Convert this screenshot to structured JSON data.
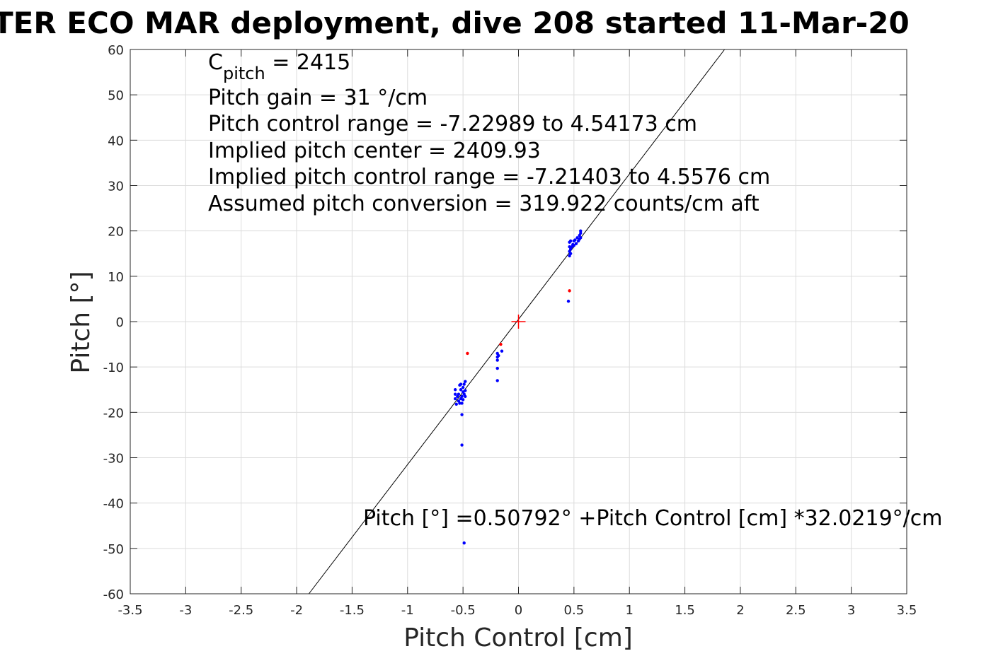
{
  "chart_data": {
    "type": "scatter",
    "title": "TER ECO MAR deployment, dive 208 started 11-Mar-20",
    "xlabel": "Pitch Control [cm]",
    "ylabel": "Pitch [°]",
    "xlim": [
      -3.5,
      3.5
    ],
    "ylim": [
      -60,
      60
    ],
    "xticks": [
      -3.5,
      -3,
      -2.5,
      -2,
      -1.5,
      -1,
      -0.5,
      0,
      0.5,
      1,
      1.5,
      2,
      2.5,
      3,
      3.5
    ],
    "yticks": [
      -60,
      -50,
      -40,
      -30,
      -20,
      -10,
      0,
      10,
      20,
      30,
      40,
      50,
      60
    ],
    "xtick_labels": [
      "-3.5",
      "-3",
      "-2.5",
      "-2",
      "-1.5",
      "-1",
      "-0.5",
      "0",
      "0.5",
      "1",
      "1.5",
      "2",
      "2.5",
      "3",
      "3.5"
    ],
    "ytick_labels": [
      "-60",
      "-50",
      "-40",
      "-30",
      "-20",
      "-10",
      "0",
      "10",
      "20",
      "30",
      "40",
      "50",
      "60"
    ],
    "grid": true,
    "annotations": {
      "cpitch": {
        "symbol": "C",
        "subscript": "pitch",
        "text": " = 2415"
      },
      "lines": [
        "Pitch gain = 31 °/cm",
        "Pitch control range = -7.22989 to 4.54173 cm",
        "Implied pitch center = 2409.93",
        "Implied pitch control range = -7.21403 to 4.5576 cm",
        "Assumed pitch conversion = 319.922 counts/cm aft"
      ],
      "equation": "Pitch [°] =0.50792° +Pitch Control [cm] *32.0219°/cm"
    },
    "fit_line": {
      "intercept": 0.50792,
      "slope": 32.0219,
      "color": "#000000"
    },
    "center_marker": {
      "x": 0,
      "y": 0,
      "color": "#ff0000"
    },
    "series": [
      {
        "color": "#0000ff",
        "points": [
          [
            -0.57,
            -15
          ],
          [
            -0.57,
            -16
          ],
          [
            -0.57,
            -17
          ],
          [
            -0.56,
            -18.2
          ],
          [
            -0.55,
            -16.5
          ],
          [
            -0.54,
            -17.5
          ],
          [
            -0.54,
            -16
          ],
          [
            -0.53,
            -14
          ],
          [
            -0.53,
            -18
          ],
          [
            -0.52,
            -15
          ],
          [
            -0.52,
            -17
          ],
          [
            -0.52,
            -13.8
          ],
          [
            -0.51,
            -16.5
          ],
          [
            -0.51,
            -18
          ],
          [
            -0.51,
            -20.5
          ],
          [
            -0.51,
            -27.2
          ],
          [
            -0.5,
            -14.5
          ],
          [
            -0.5,
            -17.2
          ],
          [
            -0.5,
            -15.5
          ],
          [
            -0.49,
            -16
          ],
          [
            -0.49,
            -13.8
          ],
          [
            -0.49,
            -48.8
          ],
          [
            -0.48,
            -16.5
          ],
          [
            -0.48,
            -13.2
          ],
          [
            -0.48,
            -15.2
          ],
          [
            -0.19,
            -7
          ],
          [
            -0.19,
            -7.8
          ],
          [
            -0.19,
            -8.5
          ],
          [
            -0.19,
            -10.3
          ],
          [
            -0.19,
            -13
          ],
          [
            -0.18,
            -7.5
          ],
          [
            -0.15,
            -6.5
          ],
          [
            0.45,
            4.5
          ],
          [
            0.46,
            14.5
          ],
          [
            0.46,
            15.5
          ],
          [
            0.46,
            16.5
          ],
          [
            0.46,
            17.5
          ],
          [
            0.47,
            15
          ],
          [
            0.47,
            16
          ],
          [
            0.47,
            17.8
          ],
          [
            0.48,
            16.5
          ],
          [
            0.49,
            17
          ],
          [
            0.5,
            16.8
          ],
          [
            0.5,
            17.8
          ],
          [
            0.51,
            18
          ],
          [
            0.52,
            17.2
          ],
          [
            0.53,
            18.5
          ],
          [
            0.54,
            17.8
          ],
          [
            0.55,
            19
          ],
          [
            0.55,
            18.2
          ],
          [
            0.56,
            18.5
          ],
          [
            0.56,
            19.5
          ],
          [
            0.56,
            20
          ]
        ]
      },
      {
        "color": "#ff0000",
        "points": [
          [
            -0.46,
            -7
          ],
          [
            -0.16,
            -5
          ],
          [
            0.46,
            6.8
          ]
        ]
      }
    ]
  }
}
